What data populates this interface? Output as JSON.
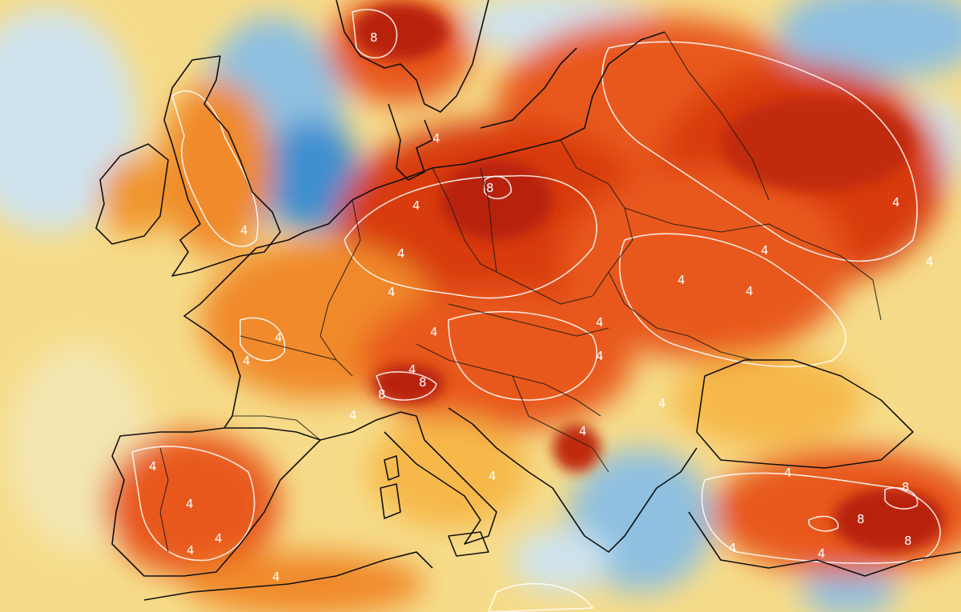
{
  "map": {
    "type": "temperature-anomaly-map",
    "region": "Europe",
    "contour_labels": [
      "4",
      "8"
    ],
    "palette": {
      "deep_red": "#b8200f",
      "red": "#d83a10",
      "orange_red": "#e8581a",
      "orange": "#f08a2a",
      "light_orange": "#f6b84a",
      "yellow": "#f6dc8a",
      "pale_yellow": "#f3e6b0",
      "pale_blue": "#cfe3ee",
      "light_blue": "#8fc0e0",
      "blue": "#3d8fcf",
      "contour_line": "#ffffff",
      "coastline": "#111111"
    }
  }
}
